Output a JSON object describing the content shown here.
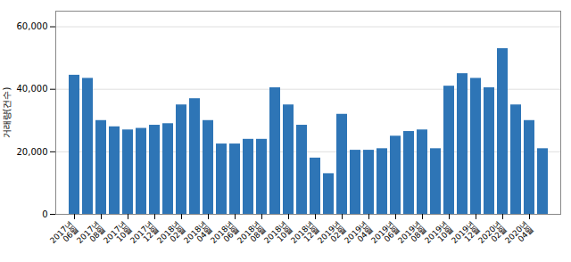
{
  "chart_data": {
    "type": "bar",
    "ylabel": "거래량(건수)",
    "categories": [
      "2017년\n06월",
      null,
      "2017년\n08월",
      null,
      "2017년\n10월",
      null,
      "2017년\n12월",
      null,
      "2018년\n02월",
      null,
      "2018년\n04월",
      null,
      "2018년\n06월",
      null,
      "2018년\n08월",
      null,
      "2018년\n10월",
      null,
      "2018년\n12월",
      null,
      "2019년\n02월",
      null,
      "2019년\n04월",
      null,
      "2019년\n06월",
      null,
      "2019년\n08월",
      null,
      "2019년\n10월",
      null,
      "2019년\n12월",
      null,
      "2020년\n02월",
      null,
      "2020년\n04월",
      null
    ],
    "values": [
      44500,
      43500,
      30000,
      28000,
      27000,
      27500,
      28500,
      29000,
      35000,
      37000,
      30000,
      22500,
      22500,
      24000,
      24000,
      40500,
      35000,
      28500,
      18000,
      13000,
      32000,
      20500,
      20500,
      21000,
      25000,
      26500,
      27000,
      21000,
      41000,
      45000,
      43500,
      40500,
      53000,
      35000,
      30000,
      21000
    ],
    "color": "#2E75B6",
    "ylim": [
      0,
      65000
    ],
    "yticks": [
      0,
      {
        "value": 20000,
        "label": "20,000"
      },
      {
        "value": 40000,
        "label": "40,000"
      },
      {
        "value": 60000,
        "label": "60,000"
      }
    ],
    "grid": true
  }
}
